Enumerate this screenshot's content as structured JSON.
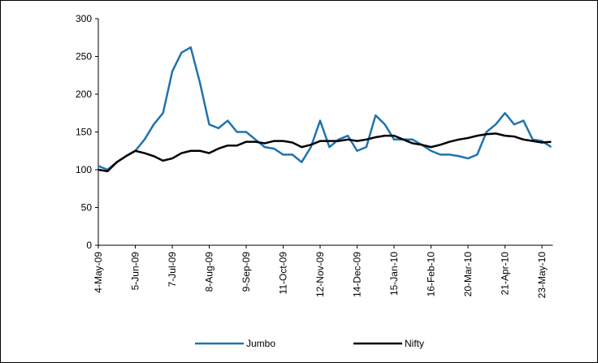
{
  "chart_data": {
    "type": "line",
    "categories": [
      "4-May-09",
      null,
      null,
      null,
      "5-Jun-09",
      null,
      null,
      null,
      "7-Jul-09",
      null,
      null,
      null,
      "8-Aug-09",
      null,
      null,
      null,
      "9-Sep-09",
      null,
      null,
      null,
      "11-Oct-09",
      null,
      null,
      null,
      "12-Nov-09",
      null,
      null,
      null,
      "14-Dec-09",
      null,
      null,
      null,
      "15-Jan-10",
      null,
      null,
      null,
      "16-Feb-10",
      null,
      null,
      null,
      "20-Mar-10",
      null,
      null,
      null,
      "21-Apr-10",
      null,
      null,
      null,
      "23-May-10",
      null
    ],
    "series": [
      {
        "name": "Jumbo",
        "color": "#1f74ad",
        "values": [
          105,
          100,
          110,
          118,
          125,
          140,
          160,
          175,
          230,
          255,
          262,
          215,
          160,
          155,
          165,
          150,
          150,
          140,
          130,
          128,
          120,
          120,
          110,
          130,
          165,
          130,
          140,
          145,
          125,
          130,
          172,
          160,
          140,
          140,
          140,
          133,
          125,
          120,
          120,
          118,
          115,
          120,
          150,
          160,
          175,
          160,
          165,
          140,
          138,
          130
        ]
      },
      {
        "name": "Nifty",
        "color": "#000000",
        "values": [
          100,
          98,
          110,
          118,
          125,
          122,
          118,
          112,
          115,
          122,
          125,
          125,
          122,
          128,
          132,
          132,
          137,
          137,
          135,
          138,
          138,
          136,
          130,
          133,
          138,
          138,
          138,
          140,
          138,
          140,
          143,
          145,
          145,
          140,
          135,
          133,
          130,
          133,
          137,
          140,
          142,
          145,
          147,
          148,
          145,
          144,
          140,
          138,
          136,
          137
        ]
      }
    ],
    "ylim": [
      0,
      300
    ],
    "yticks": [
      0,
      50,
      100,
      150,
      200,
      250,
      300
    ],
    "grid": false,
    "legend": "bottom"
  }
}
